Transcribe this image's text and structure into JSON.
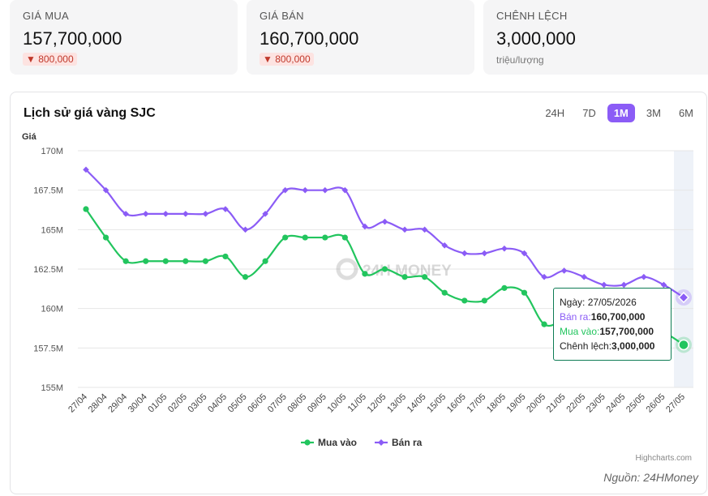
{
  "stats": [
    {
      "label": "GIÁ MUA",
      "value": "157,700,000",
      "change": "800,000",
      "change_dir": "down"
    },
    {
      "label": "GIÁ BÁN",
      "value": "160,700,000",
      "change": "800,000",
      "change_dir": "down"
    },
    {
      "label": "CHÊNH LỆCH",
      "value": "3,000,000",
      "unit": "triệu/lượng"
    }
  ],
  "card": {
    "title": "Lịch sử giá vàng SJC",
    "ranges": [
      "24H",
      "7D",
      "1M",
      "3M",
      "6M"
    ],
    "active_range": "1M",
    "credit": "Highcharts.com",
    "source": "Nguồn: 24HMoney",
    "watermark": "24H MONEY"
  },
  "tooltip": {
    "date_label": "Ngày:",
    "date": "27/05/2026",
    "sell_label": "Bán ra:",
    "sell": "160,700,000",
    "buy_label": "Mua vào:",
    "buy": "157,700,000",
    "spread_label": "Chênh lệch:",
    "spread": "3,000,000"
  },
  "chart_data": {
    "type": "line",
    "ylabel": "Giá",
    "ylim": [
      155,
      170
    ],
    "yticks": [
      "155M",
      "157.5M",
      "160M",
      "162.5M",
      "165M",
      "167.5M",
      "170M"
    ],
    "categories": [
      "27/04",
      "28/04",
      "29/04",
      "30/04",
      "01/05",
      "02/05",
      "03/05",
      "04/05",
      "05/05",
      "06/05",
      "07/05",
      "08/05",
      "09/05",
      "10/05",
      "11/05",
      "12/05",
      "13/05",
      "14/05",
      "15/05",
      "16/05",
      "17/05",
      "18/05",
      "19/05",
      "20/05",
      "21/05",
      "22/05",
      "23/05",
      "24/05",
      "25/05",
      "26/05",
      "27/05"
    ],
    "grid": true,
    "legend_position": "bottom",
    "series": [
      {
        "name": "Mua vào",
        "color": "#22c55e",
        "values": [
          166.3,
          164.5,
          163,
          163,
          163,
          163,
          163,
          163.3,
          162,
          163,
          164.5,
          164.5,
          164.5,
          164.5,
          162.2,
          162.5,
          162,
          162,
          161,
          160.5,
          160.5,
          161.3,
          161,
          159,
          159.2,
          159,
          158.7,
          158.7,
          158.9,
          158.5,
          157.7
        ]
      },
      {
        "name": "Bán ra",
        "color": "#8b5cf6",
        "values": [
          168.8,
          167.5,
          166,
          166,
          166,
          166,
          166,
          166.3,
          165,
          166,
          167.5,
          167.5,
          167.5,
          167.5,
          165.2,
          165.5,
          165,
          165,
          164,
          163.5,
          163.5,
          163.8,
          163.5,
          162,
          162.4,
          162,
          161.5,
          161.5,
          162,
          161.5,
          160.7
        ]
      }
    ]
  }
}
